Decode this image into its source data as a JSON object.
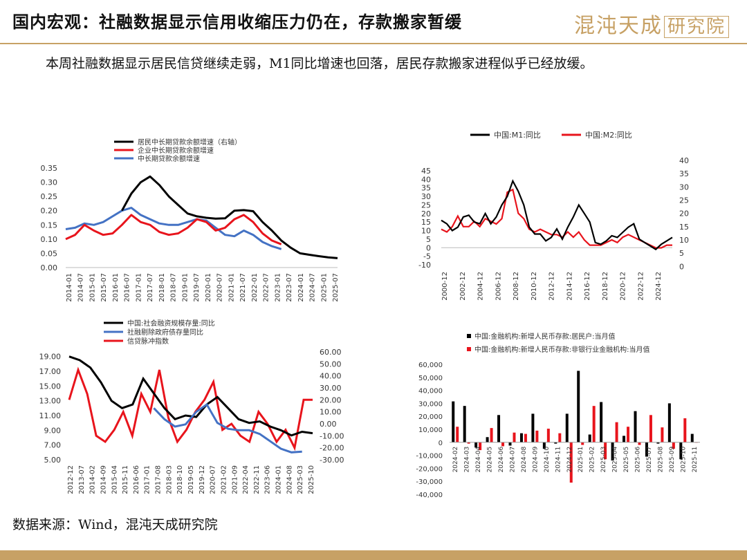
{
  "header": {
    "title": "国内宏观：社融数据显示信用收缩压力仍在，存款搬家暂缓",
    "brand": "混沌天成",
    "brand_box": "研究院"
  },
  "summary": "本周社融数据显示居民信贷继续走弱，M1同比增速也回落，居民存款搬家进程似乎已经放缓。",
  "source": "数据来源：Wind，混沌天成研究院",
  "colors": {
    "black": "#000000",
    "red": "#e8141c",
    "blue": "#4472c4",
    "gold": "#c7a165"
  },
  "chart_data": [
    {
      "id": "loans",
      "type": "line",
      "legend": [
        "居民中长期贷款余额增速（右轴）",
        "企业中长期贷款余额增速",
        "中长期贷款余额增速"
      ],
      "x_labels": [
        "2014-01",
        "2014-07",
        "2015-01",
        "2015-07",
        "2016-01",
        "2016-07",
        "2017-01",
        "2017-07",
        "2018-01",
        "2018-07",
        "2019-01",
        "2019-07",
        "2020-01",
        "2020-07",
        "2021-01",
        "2021-07",
        "2022-01",
        "2022-07",
        "2023-01",
        "2023-07",
        "2024-01",
        "2024-07",
        "2025-01",
        "2025-07"
      ],
      "y_ticks": [
        "0.35",
        "0.30",
        "0.25",
        "0.20",
        "0.15",
        "0.10",
        "0.05",
        "0.00"
      ],
      "ylim": [
        0,
        0.35
      ],
      "series": [
        {
          "name": "居民中长期贷款余额增速（右轴）",
          "color": "black",
          "start": 6,
          "values": [
            0.2,
            0.26,
            0.3,
            0.32,
            0.29,
            0.25,
            0.22,
            0.19,
            0.18,
            0.175,
            0.172,
            0.173,
            0.2,
            0.202,
            0.198,
            0.16,
            0.13,
            0.095,
            0.07,
            0.05,
            0.045,
            0.04,
            0.036,
            0.033
          ]
        },
        {
          "name": "企业中长期贷款余额增速",
          "color": "red",
          "start": 0,
          "values": [
            0.1,
            0.115,
            0.15,
            0.13,
            0.115,
            0.12,
            0.15,
            0.185,
            0.16,
            0.15,
            0.125,
            0.115,
            0.12,
            0.14,
            0.17,
            0.16,
            0.13,
            0.14,
            0.17,
            0.185,
            0.16,
            0.12,
            0.095,
            0.082
          ]
        },
        {
          "name": "中长期贷款余额增速",
          "color": "blue",
          "start": 0,
          "values": [
            0.135,
            0.14,
            0.155,
            0.15,
            0.16,
            0.18,
            0.2,
            0.21,
            0.185,
            0.17,
            0.155,
            0.15,
            0.15,
            0.16,
            0.17,
            0.165,
            0.14,
            0.115,
            0.11,
            0.13,
            0.115,
            0.09,
            0.075,
            0.065
          ]
        }
      ]
    },
    {
      "id": "money",
      "type": "line",
      "legend": [
        "中国:M1:同比",
        "中国:M2:同比"
      ],
      "x_labels": [
        "2000-12",
        "2002-12",
        "2004-12",
        "2006-12",
        "2008-12",
        "2010-12",
        "2012-12",
        "2014-12",
        "2016-12",
        "2018-12",
        "2020-12",
        "2022-12",
        "2024-12"
      ],
      "y_ticks_left": [
        "45",
        "40",
        "35",
        "30",
        "25",
        "20",
        "15",
        "10",
        "5",
        "0",
        "-5",
        "-10"
      ],
      "y_ticks_right": [
        "40",
        "35",
        "30",
        "25",
        "20",
        "15",
        "10",
        "5",
        "0"
      ],
      "ylim_left": [
        -10,
        45
      ],
      "ylim_right": [
        0,
        40
      ],
      "series": [
        {
          "name": "中国:M1:同比",
          "color": "black",
          "axis": "left",
          "values": [
            16,
            14,
            10,
            12,
            18,
            19,
            15,
            14,
            20,
            14,
            18,
            25,
            30,
            39,
            33,
            25,
            12,
            8,
            8,
            4,
            6,
            11,
            5,
            12,
            18,
            25,
            20,
            15,
            3,
            2,
            4,
            7,
            6,
            9,
            12,
            14,
            5,
            3,
            1,
            -1,
            2,
            4,
            6
          ]
        },
        {
          "name": "中国:M2:同比",
          "color": "red",
          "axis": "right",
          "values": [
            14,
            13,
            15,
            19,
            15,
            15,
            17,
            15,
            18,
            17,
            16,
            18,
            28,
            29,
            20,
            18,
            14,
            13,
            14,
            13,
            12,
            12,
            11,
            13,
            11,
            13,
            10,
            8,
            8,
            8,
            9,
            10,
            9,
            11,
            12,
            11,
            10,
            9,
            8,
            7,
            7,
            8,
            8
          ]
        }
      ]
    },
    {
      "id": "credit",
      "type": "line",
      "legend": [
        "中国:社会融资规模存量:同比",
        "社融剔除政府债存量同比",
        "信贷脉冲指数"
      ],
      "x_labels": [
        "2012-12",
        "2013-07",
        "2014-02",
        "2014-09",
        "2015-04",
        "2015-11",
        "2016-06",
        "2017-01",
        "2017-08",
        "2018-03",
        "2018-10",
        "2019-05",
        "2019-12",
        "2020-07",
        "2021-02",
        "2021-09",
        "2022-04",
        "2022-11",
        "2023-06",
        "2024-01",
        "2024-08",
        "2025-03",
        "2025-10"
      ],
      "y_ticks_left": [
        "19.00",
        "17.00",
        "15.00",
        "13.00",
        "11.00",
        "9.00",
        "7.00",
        "5.00"
      ],
      "y_ticks_right": [
        "60.00",
        "50.00",
        "40.00",
        "30.00",
        "20.00",
        "10.00",
        "0.00",
        "-10.00",
        "-20.00",
        "-30.00"
      ],
      "ylim_left": [
        5,
        20
      ],
      "ylim_right": [
        -30,
        60
      ],
      "series": [
        {
          "name": "中国:社会融资规模存量:同比",
          "color": "black",
          "axis": "left",
          "start": 0,
          "values": [
            19.0,
            18.5,
            17.5,
            15.5,
            13.0,
            12.0,
            12.5,
            16.0,
            14.0,
            12.0,
            10.5,
            11.0,
            10.8,
            12.5,
            13.5,
            12.0,
            10.5,
            10.0,
            10.2,
            9.5,
            9.0,
            8.3,
            8.8,
            8.6
          ]
        },
        {
          "name": "社融剔除政府债存量同比",
          "color": "blue",
          "axis": "left",
          "start": 8,
          "values": [
            12.0,
            10.5,
            9.5,
            9.8,
            11.5,
            12.5,
            10.0,
            9.2,
            9.0,
            9.0,
            8.5,
            7.5,
            6.5,
            6.0,
            6.1
          ]
        },
        {
          "name": "信贷脉冲指数",
          "color": "red",
          "axis": "right",
          "start": 0,
          "values": [
            20,
            45,
            25,
            -10,
            -15,
            -5,
            10,
            -10,
            25,
            10,
            45,
            5,
            -15,
            -5,
            10,
            20,
            35,
            -5,
            0,
            -10,
            -15,
            10,
            0,
            -15,
            -5,
            -20,
            20,
            20
          ]
        }
      ]
    },
    {
      "id": "deposits",
      "type": "bar",
      "legend": [
        "中国:金融机构:新增人民币存款:居民户:当月值",
        "中国:金融机构:新增人民币存款:非银行业金融机构:当月值"
      ],
      "categories": [
        "2024-02",
        "2024-03",
        "2024-04",
        "2024-05",
        "2024-06",
        "2024-07",
        "2024-08",
        "2024-09",
        "2024-10",
        "2024-11",
        "2024-12",
        "2025-01",
        "2025-02",
        "2025-03",
        "2025-04",
        "2025-05",
        "2025-06",
        "2025-07",
        "2025-08",
        "2025-09",
        "2025-10",
        "2025-11"
      ],
      "y_ticks": [
        "60,000",
        "50,000",
        "40,000",
        "30,000",
        "20,000",
        "10,000",
        "0",
        "-10,000",
        "-20,000",
        "-30,000",
        "-40,000"
      ],
      "ylim": [
        -40000,
        60000
      ],
      "series": [
        {
          "name": "居民户",
          "color": "black",
          "values": [
            31500,
            28000,
            -4000,
            4000,
            21000,
            -2500,
            7000,
            22000,
            -5000,
            -1000,
            22000,
            55000,
            6000,
            31000,
            -14000,
            5000,
            24000,
            -11000,
            -1000,
            30000,
            -13000,
            6500
          ]
        },
        {
          "name": "非银行业金融机构",
          "color": "red",
          "values": [
            12000,
            -1000,
            -6000,
            11000,
            -3000,
            7500,
            6500,
            9000,
            10500,
            7000,
            -31000,
            -2000,
            28000,
            -13000,
            15500,
            12000,
            -2000,
            21000,
            11500,
            -5000,
            18500,
            0
          ]
        }
      ]
    }
  ]
}
